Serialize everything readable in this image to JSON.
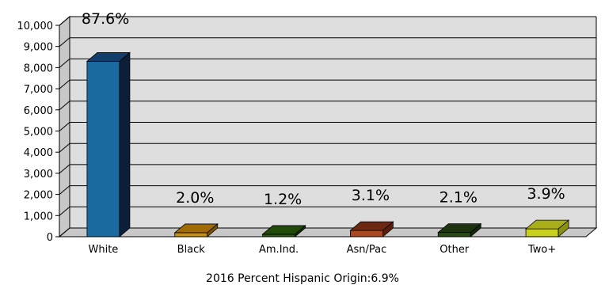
{
  "chart_data": {
    "type": "bar",
    "categories": [
      "White",
      "Black",
      "Am.Ind.",
      "Asn/Pac",
      "Other",
      "Two+"
    ],
    "values": [
      8300,
      190,
      115,
      295,
      200,
      370
    ],
    "data_labels": [
      "87.6%",
      "2.0%",
      "1.2%",
      "3.1%",
      "2.1%",
      "3.9%"
    ],
    "ylim": [
      0,
      10000
    ],
    "yticks": [
      0,
      1000,
      2000,
      3000,
      4000,
      5000,
      6000,
      7000,
      8000,
      9000,
      10000
    ],
    "ytick_labels": [
      "0",
      "1,000",
      "2,000",
      "3,000",
      "4,000",
      "5,000",
      "6,000",
      "7,000",
      "8,000",
      "9,000",
      "10,000"
    ],
    "grid": true,
    "style": "3d",
    "colors": {
      "face": [
        "#1a6aa0",
        "#c89010",
        "#2e5a0e",
        "#a84822",
        "#2c4818",
        "#c8d020"
      ],
      "top": [
        "#123e6c",
        "#a06c08",
        "#224a08",
        "#6e2812",
        "#1e3410",
        "#a8ae18"
      ],
      "side": [
        "#0c1e38",
        "#7a5406",
        "#163206",
        "#5a1e0c",
        "#142a0a",
        "#8a9012"
      ]
    },
    "footnote": "2016 Percent Hispanic Origin:6.9%"
  }
}
